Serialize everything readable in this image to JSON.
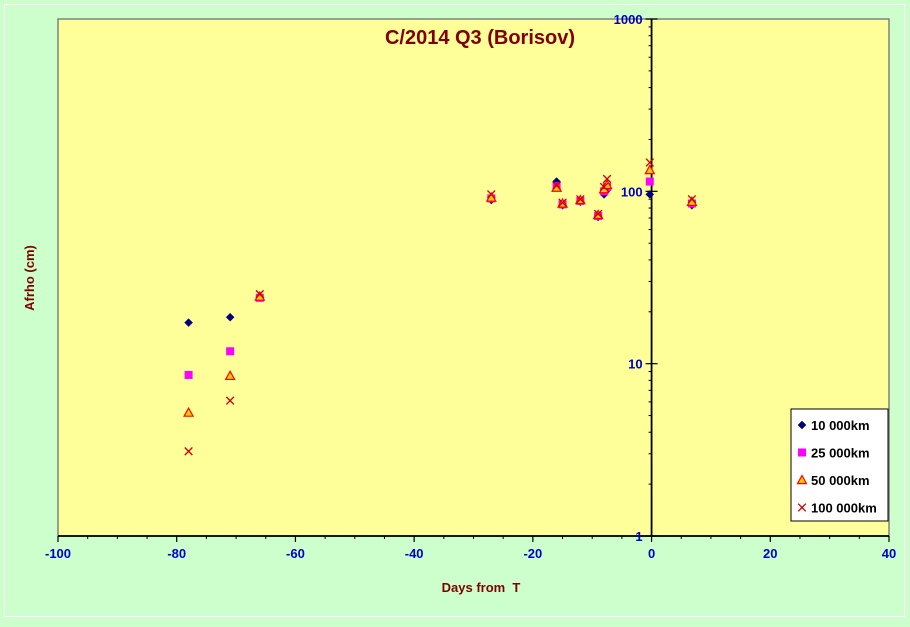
{
  "chart_data": {
    "type": "scatter",
    "title": "C/2014 Q3 (Borisov)",
    "xlabel": "Days from  T",
    "ylabel": "Afrho (cm)",
    "xlim": [
      -100,
      40
    ],
    "ylim": [
      1,
      1000
    ],
    "y_scale": "log",
    "x_ticks": [
      "-100",
      "-80",
      "-60",
      "-40",
      "-20",
      "0",
      "20",
      "40"
    ],
    "y_ticks": [
      "1",
      "10",
      "100",
      "1000"
    ],
    "grid": false,
    "legend_position": "bottom-right",
    "colors": {
      "plot_background": "#ffff99",
      "page_background": "#ccffcc",
      "title": "#800000",
      "axis_label": "#800000",
      "tick_label": "#0000cc"
    },
    "series": [
      {
        "name": "10 000km",
        "marker": "diamond",
        "color": "#000080",
        "points": [
          {
            "x": -78,
            "y": 17.3
          },
          {
            "x": -71,
            "y": 18.6
          },
          {
            "x": -66,
            "y": 24.3
          },
          {
            "x": -27,
            "y": 89
          },
          {
            "x": -16,
            "y": 114
          },
          {
            "x": -15,
            "y": 83
          },
          {
            "x": -12,
            "y": 87
          },
          {
            "x": -9,
            "y": 71
          },
          {
            "x": -8,
            "y": 96
          },
          {
            "x": -7.5,
            "y": 102
          },
          {
            "x": -0.3,
            "y": 96
          },
          {
            "x": 6.8,
            "y": 83
          }
        ]
      },
      {
        "name": "25 000km",
        "marker": "square",
        "color": "#ff00ff",
        "points": [
          {
            "x": -78,
            "y": 8.6
          },
          {
            "x": -71,
            "y": 11.8
          },
          {
            "x": -66,
            "y": 24.1
          },
          {
            "x": -27,
            "y": 91
          },
          {
            "x": -16,
            "y": 107
          },
          {
            "x": -15,
            "y": 84
          },
          {
            "x": -12,
            "y": 88
          },
          {
            "x": -9,
            "y": 72
          },
          {
            "x": -8,
            "y": 100
          },
          {
            "x": -7.5,
            "y": 106
          },
          {
            "x": -0.3,
            "y": 114
          },
          {
            "x": 6.8,
            "y": 85
          }
        ]
      },
      {
        "name": "50 000km",
        "marker": "triangle",
        "color": "#ff0000",
        "points": [
          {
            "x": -78,
            "y": 5.2
          },
          {
            "x": -71,
            "y": 8.5
          },
          {
            "x": -66,
            "y": 24.5
          },
          {
            "x": -27,
            "y": 92
          },
          {
            "x": -16,
            "y": 105
          },
          {
            "x": -15,
            "y": 85
          },
          {
            "x": -12,
            "y": 89
          },
          {
            "x": -9,
            "y": 73
          },
          {
            "x": -8,
            "y": 103
          },
          {
            "x": -7.5,
            "y": 109
          },
          {
            "x": -0.3,
            "y": 133
          },
          {
            "x": 6.8,
            "y": 87
          }
        ]
      },
      {
        "name": "100 000km",
        "marker": "x",
        "color": "#cc0000",
        "points": [
          {
            "x": -78,
            "y": 3.1
          },
          {
            "x": -71,
            "y": 6.1
          },
          {
            "x": -66,
            "y": 25.3
          },
          {
            "x": -27,
            "y": 96
          },
          {
            "x": -16,
            "y": 108
          },
          {
            "x": -15,
            "y": 86
          },
          {
            "x": -12,
            "y": 90
          },
          {
            "x": -9,
            "y": 74
          },
          {
            "x": -8,
            "y": 106
          },
          {
            "x": -7.5,
            "y": 118
          },
          {
            "x": -0.3,
            "y": 147
          },
          {
            "x": 6.8,
            "y": 90
          }
        ]
      }
    ]
  }
}
